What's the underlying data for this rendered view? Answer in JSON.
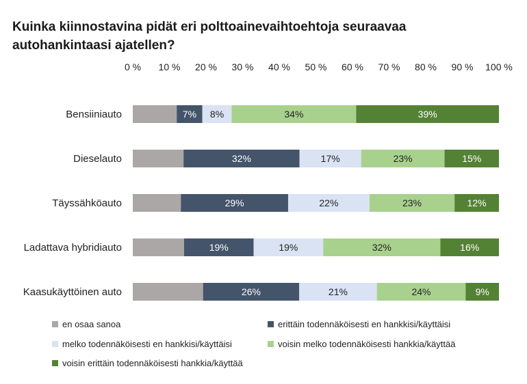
{
  "chart_data": {
    "type": "bar",
    "orientation": "horizontal",
    "stacked": "percent",
    "title": "Kuinka kiinnostavina pidät eri polttoainevaihtoehtoja seuraavaa autohankintaasi ajatellen?",
    "x_ticks": [
      "0 %",
      "10 %",
      "20 %",
      "30 %",
      "40 %",
      "50 %",
      "60 %",
      "70 %",
      "80 %",
      "90 %",
      "100 %"
    ],
    "xlim": [
      0,
      100
    ],
    "axis_position": "top",
    "grid": false,
    "legend_position": "bottom",
    "categories": [
      "Bensiiniauto",
      "Dieselauto",
      "Täyssähköauto",
      "Ladattava hybridiauto",
      "Kaasukäyttöinen auto"
    ],
    "series": [
      {
        "name": "en osaa sanoa",
        "color": "#aca7a7",
        "values": [
          12,
          14,
          13,
          14,
          19
        ],
        "labels": [
          "",
          "",
          "",
          "",
          ""
        ]
      },
      {
        "name": "erittäin todennäköisesti en hankkisi/käyttäisi",
        "color": "#44546a",
        "values": [
          7,
          32,
          29,
          19,
          26
        ],
        "labels": [
          "7%",
          "32%",
          "29%",
          "19%",
          "26%"
        ]
      },
      {
        "name": "melko todennäköisesti en hankkisi/käyttäisi",
        "color": "#dae3f3",
        "values": [
          8,
          17,
          22,
          19,
          21
        ],
        "labels": [
          "8%",
          "17%",
          "22%",
          "19%",
          "21%"
        ]
      },
      {
        "name": "voisin melko todennäköisesti hankkia/käyttää",
        "color": "#a9d18e",
        "values": [
          34,
          23,
          23,
          32,
          24
        ],
        "labels": [
          "34%",
          "23%",
          "23%",
          "32%",
          "24%"
        ]
      },
      {
        "name": "voisin erittäin todennäköisesti hankkia/käyttää",
        "color": "#548235",
        "values": [
          39,
          15,
          12,
          16,
          9
        ],
        "labels": [
          "39%",
          "15%",
          "12%",
          "16%",
          "9%"
        ]
      }
    ]
  }
}
